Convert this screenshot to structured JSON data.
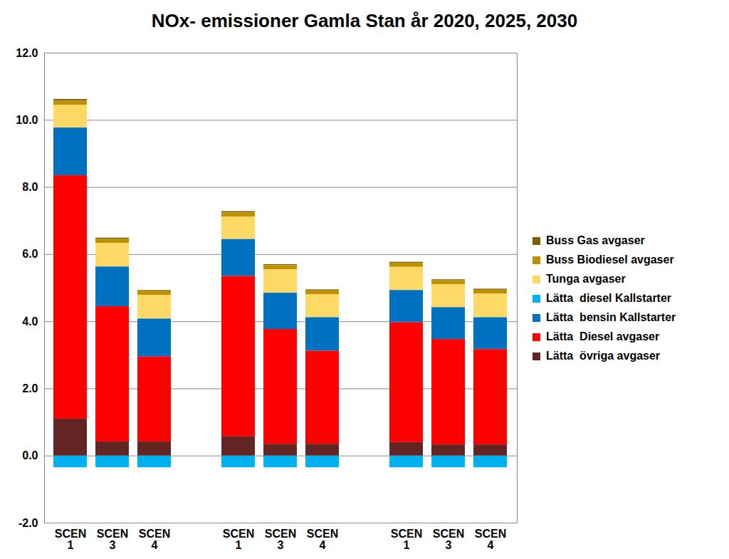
{
  "chart_data": {
    "type": "bar",
    "title": "NOx- emissioner Gamla Stan år 2020, 2025, 2030",
    "stacked": true,
    "grid": true,
    "legend": "right",
    "categories": [
      "SCEN\n1",
      "SCEN\n3",
      "SCEN\n4",
      null,
      "SCEN\n1",
      "SCEN\n3",
      "SCEN\n4",
      null,
      "SCEN\n1",
      "SCEN\n3",
      "SCEN\n4"
    ],
    "ylim": [
      -2,
      12
    ],
    "yticks": [
      {
        "value": -2,
        "label": "-2.0"
      },
      {
        "value": 0,
        "label": "0.0"
      },
      {
        "value": 2,
        "label": "2.0"
      },
      {
        "value": 4,
        "label": "4.0"
      },
      {
        "value": 6,
        "label": "6.0"
      },
      {
        "value": 8,
        "label": "8.0"
      },
      {
        "value": 10,
        "label": "10.0"
      },
      {
        "value": 12,
        "label": "12.0"
      }
    ],
    "series": [
      {
        "name": "Buss Gas avgaser",
        "color": "#7f6000",
        "values": [
          0.05,
          0.04,
          0.03,
          null,
          0.04,
          0.03,
          0.03,
          null,
          0.03,
          0.03,
          0.03
        ]
      },
      {
        "name": "Buss Biodiesel avgaser",
        "color": "#bf9000",
        "values": [
          0.12,
          0.12,
          0.12,
          null,
          0.12,
          0.12,
          0.12,
          null,
          0.12,
          0.12,
          0.12
        ]
      },
      {
        "name": "Tunga avgaser",
        "color": "#ffd966",
        "values": [
          0.68,
          0.7,
          0.7,
          null,
          0.67,
          0.7,
          0.68,
          null,
          0.69,
          0.68,
          0.7
        ]
      },
      {
        "name": "Lätta  diesel Kallstarter",
        "color": "#00b0f0",
        "values": [
          -0.35,
          -0.35,
          -0.35,
          null,
          -0.35,
          -0.35,
          -0.35,
          null,
          -0.35,
          -0.35,
          -0.35
        ]
      },
      {
        "name": "Lätta  bensin Kallstarter",
        "color": "#0070c0",
        "values": [
          1.42,
          1.18,
          1.13,
          null,
          1.1,
          1.08,
          1.0,
          null,
          0.96,
          0.95,
          0.95
        ]
      },
      {
        "name": "Lätta  Diesel avgaser",
        "color": "#ff0000",
        "values": [
          7.25,
          4.03,
          2.53,
          null,
          4.78,
          3.42,
          2.77,
          null,
          3.57,
          3.14,
          2.84
        ]
      },
      {
        "name": "Lätta  övriga avgaser",
        "color": "#632523",
        "values": [
          1.1,
          0.42,
          0.42,
          null,
          0.57,
          0.35,
          0.35,
          null,
          0.4,
          0.33,
          0.33
        ]
      }
    ]
  }
}
